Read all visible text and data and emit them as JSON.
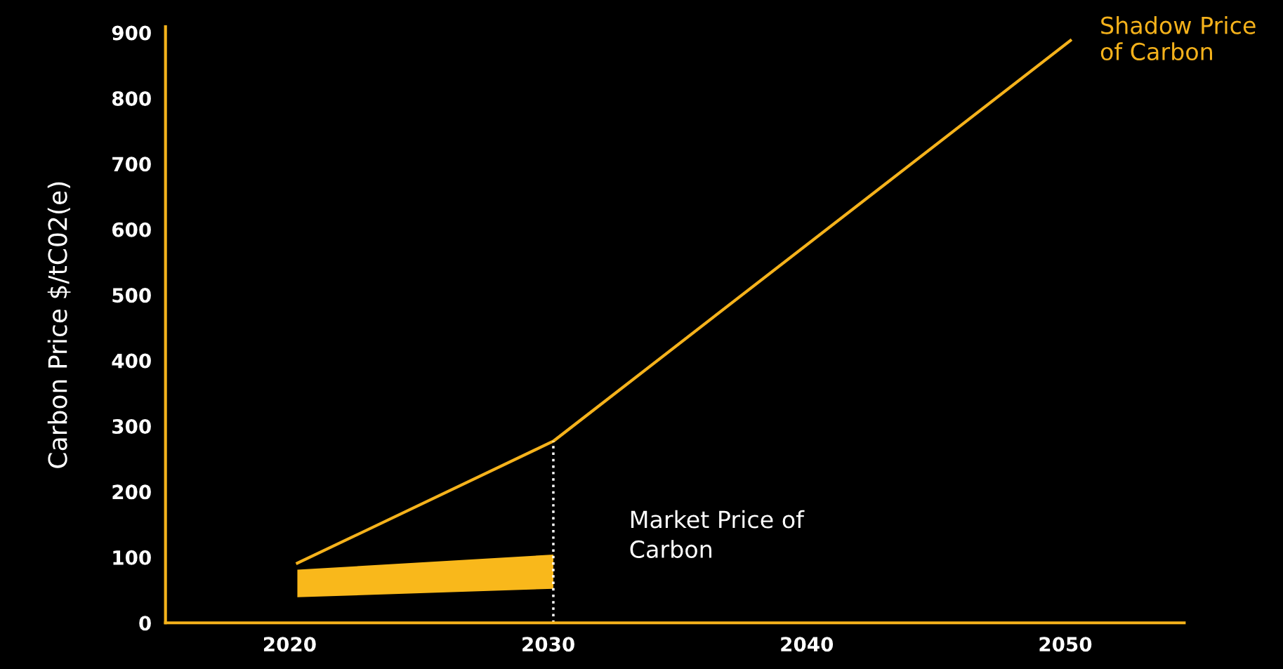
{
  "chart_data": {
    "type": "line",
    "ylabel": "Carbon Price $/tC02(e)",
    "xlim": [
      2015.2,
      2054.6
    ],
    "xticks": [
      2020,
      2030,
      2040,
      2050
    ],
    "ylim": [
      0,
      909
    ],
    "yticks": [
      0,
      100,
      200,
      300,
      400,
      500,
      600,
      700,
      800,
      900
    ],
    "series": [
      {
        "name": "Shadow Price\nof Carbon",
        "type": "line",
        "color": "#f5b21b",
        "x": [
          2020.3,
          2030.2,
          2050.2
        ],
        "values": [
          91,
          277,
          888
        ]
      },
      {
        "type": "area",
        "color": "#f9b81b",
        "x": [
          2020.3,
          2030.2
        ],
        "values": [
          null,
          null
        ],
        "lower": [
          39,
          52
        ],
        "upper": [
          81,
          104
        ]
      }
    ],
    "annotations": [
      "Market Price of\nCarbon"
    ],
    "ref_lines": [
      {
        "axis": "x",
        "value": 2030.2,
        "color": "#ffffff",
        "line_style": "dotted"
      }
    ]
  }
}
